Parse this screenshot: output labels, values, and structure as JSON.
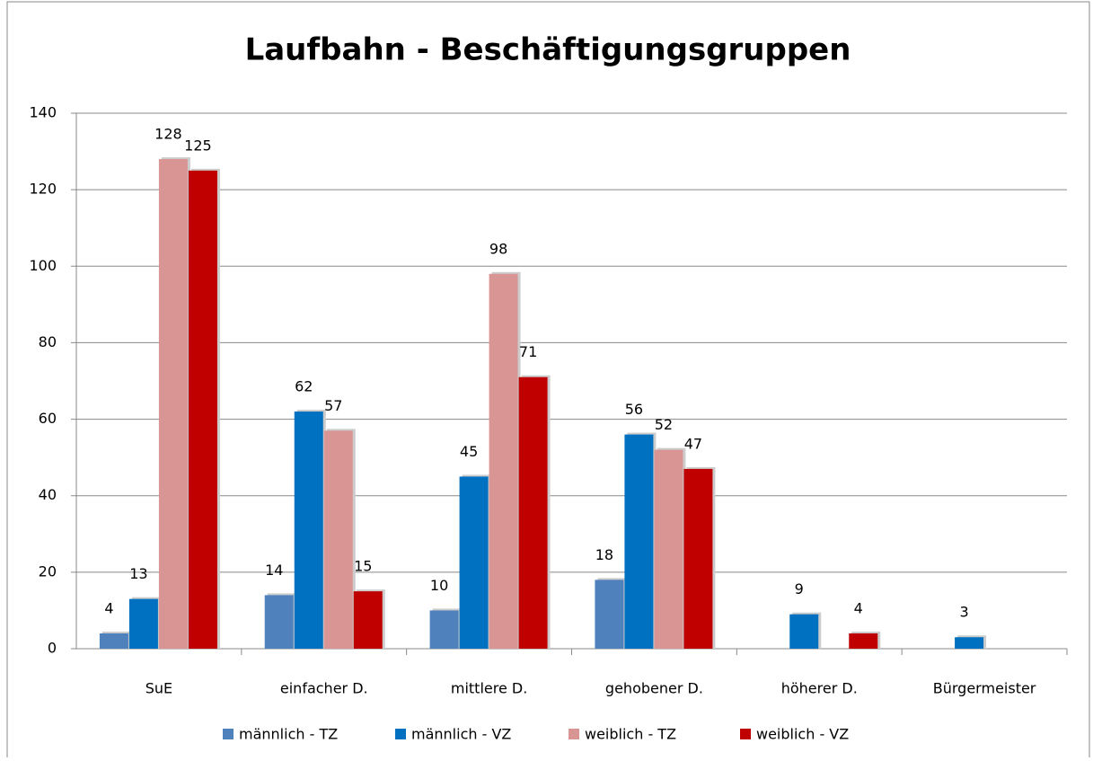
{
  "chart_data": {
    "type": "bar",
    "title": "Laufbahn - Beschäftigungsgruppen",
    "categories": [
      "SuE",
      "einfacher D.",
      "mittlere D.",
      "gehobener D.",
      "höherer D.",
      "Bürgermeister"
    ],
    "series": [
      {
        "name": "männlich - TZ",
        "color": "#4f81bd",
        "values": [
          4,
          14,
          10,
          18,
          null,
          null
        ]
      },
      {
        "name": "männlich - VZ",
        "color": "#0070c0",
        "values": [
          13,
          62,
          45,
          56,
          9,
          3
        ]
      },
      {
        "name": "weiblich - TZ",
        "color": "#d99594",
        "values": [
          128,
          57,
          98,
          52,
          null,
          null
        ]
      },
      {
        "name": "weiblich - VZ",
        "color": "#c00000",
        "values": [
          125,
          15,
          71,
          47,
          4,
          null
        ]
      }
    ],
    "ylim": [
      0,
      140
    ],
    "yticks": [
      0,
      20,
      40,
      60,
      80,
      100,
      120,
      140
    ],
    "grid": true,
    "legend": "bottom"
  }
}
